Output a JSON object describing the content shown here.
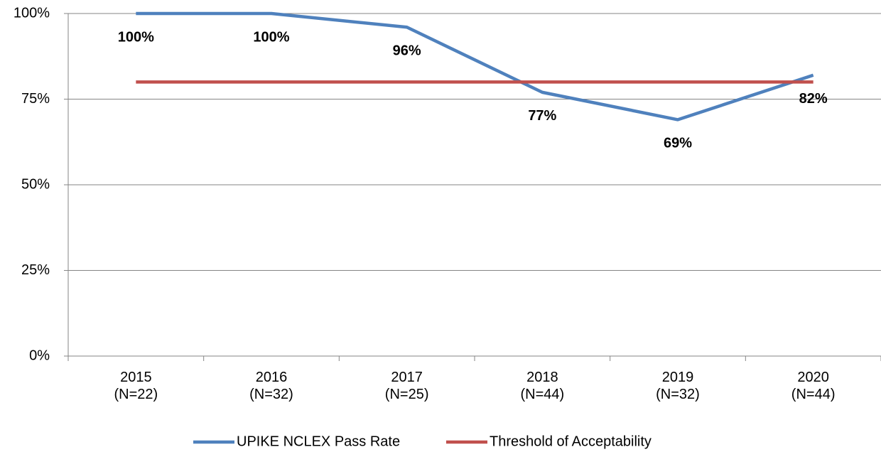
{
  "chart_data": {
    "type": "line",
    "categories": [
      "2015\n(N=22)",
      "2016\n(N=32)",
      "2017\n(N=25)",
      "2018\n(N=44)",
      "2019\n(N=32)",
      "2020\n(N=44)"
    ],
    "series": [
      {
        "name": "UPIKE NCLEX Pass Rate",
        "color": "#4f81bd",
        "values": [
          100,
          100,
          96,
          77,
          69,
          82
        ],
        "value_labels": [
          "100%",
          "100%",
          "96%",
          "77%",
          "69%",
          "82%"
        ]
      },
      {
        "name": "Threshold of Acceptability",
        "color": "#c0504d",
        "values": [
          80,
          80,
          80,
          80,
          80,
          80
        ]
      }
    ],
    "ylim": [
      0,
      100
    ],
    "yticks": [
      {
        "value": 0,
        "label": "0%"
      },
      {
        "value": 25,
        "label": "25%"
      },
      {
        "value": 50,
        "label": "50%"
      },
      {
        "value": 75,
        "label": "75%"
      },
      {
        "value": 100,
        "label": "100%"
      }
    ],
    "grid": true,
    "legend": "bottom"
  }
}
